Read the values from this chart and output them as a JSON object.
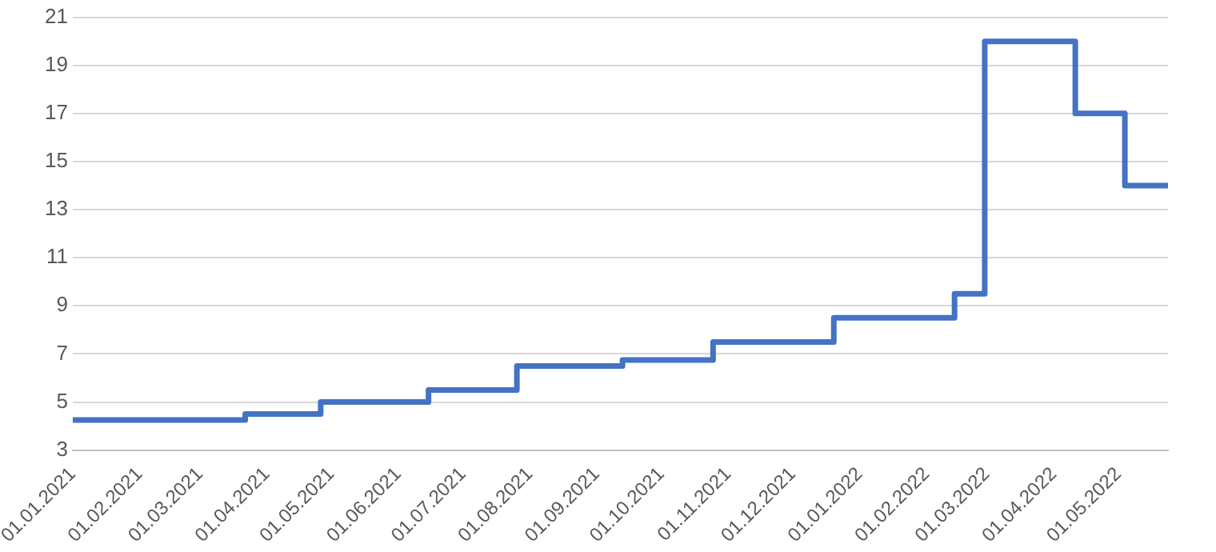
{
  "chart_data": {
    "type": "step",
    "x": [
      "2021-01-01",
      "2021-03-22",
      "2021-04-26",
      "2021-06-15",
      "2021-07-26",
      "2021-09-13",
      "2021-10-25",
      "2021-12-20",
      "2022-02-14",
      "2022-02-28",
      "2022-04-11",
      "2022-05-04",
      "2022-05-24"
    ],
    "series": [
      {
        "color": "#4472c4",
        "values": [
          4.25,
          4.5,
          5,
          5.5,
          6.5,
          6.75,
          7.5,
          8.5,
          9.5,
          20,
          17,
          14,
          14
        ]
      }
    ],
    "xlim": [
      "2021-01-01",
      "2022-05-24"
    ],
    "xticks": [
      {
        "value": "2021-01-01",
        "label": "01.01.2021"
      },
      {
        "value": "2021-02-01",
        "label": "01.02.2021"
      },
      {
        "value": "2021-03-01",
        "label": "01.03.2021"
      },
      {
        "value": "2021-04-01",
        "label": "01.04.2021"
      },
      {
        "value": "2021-05-01",
        "label": "01.05.2021"
      },
      {
        "value": "2021-06-01",
        "label": "01.06.2021"
      },
      {
        "value": "2021-07-01",
        "label": "01.07.2021"
      },
      {
        "value": "2021-08-01",
        "label": "01.08.2021"
      },
      {
        "value": "2021-09-01",
        "label": "01.09.2021"
      },
      {
        "value": "2021-10-01",
        "label": "01.10.2021"
      },
      {
        "value": "2021-11-01",
        "label": "01.11.2021"
      },
      {
        "value": "2021-12-01",
        "label": "01.12.2021"
      },
      {
        "value": "2022-01-01",
        "label": "01.01.2022"
      },
      {
        "value": "2022-02-01",
        "label": "01.02.2022"
      },
      {
        "value": "2022-03-01",
        "label": "01.03.2022"
      },
      {
        "value": "2022-04-01",
        "label": "01.04.2022"
      },
      {
        "value": "2022-05-01",
        "label": "01.05.2022"
      }
    ],
    "ylim": [
      3,
      21
    ],
    "yticks": [
      3,
      5,
      7,
      9,
      11,
      13,
      15,
      17,
      19,
      21
    ],
    "grid": "y",
    "legend": false
  }
}
